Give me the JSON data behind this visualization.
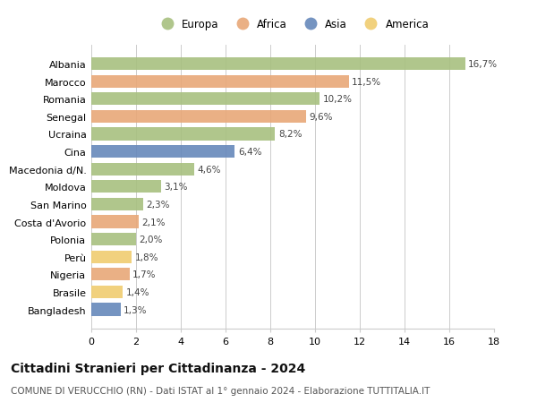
{
  "categories": [
    "Albania",
    "Marocco",
    "Romania",
    "Senegal",
    "Ucraina",
    "Cina",
    "Macedonia d/N.",
    "Moldova",
    "San Marino",
    "Costa d'Avorio",
    "Polonia",
    "Perù",
    "Nigeria",
    "Brasile",
    "Bangladesh"
  ],
  "values": [
    16.7,
    11.5,
    10.2,
    9.6,
    8.2,
    6.4,
    4.6,
    3.1,
    2.3,
    2.1,
    2.0,
    1.8,
    1.7,
    1.4,
    1.3
  ],
  "labels": [
    "16,7%",
    "11,5%",
    "10,2%",
    "9,6%",
    "8,2%",
    "6,4%",
    "4,6%",
    "3,1%",
    "2,3%",
    "2,1%",
    "2,0%",
    "1,8%",
    "1,7%",
    "1,4%",
    "1,3%"
  ],
  "continents": [
    "Europa",
    "Africa",
    "Europa",
    "Africa",
    "Europa",
    "Asia",
    "Europa",
    "Europa",
    "Europa",
    "Africa",
    "Europa",
    "America",
    "Africa",
    "America",
    "Asia"
  ],
  "colors": {
    "Europa": "#a8c080",
    "Africa": "#e8a878",
    "Asia": "#6688bb",
    "America": "#f0cc70"
  },
  "xlim": [
    0,
    18
  ],
  "xticks": [
    0,
    2,
    4,
    6,
    8,
    10,
    12,
    14,
    16,
    18
  ],
  "title": "Cittadini Stranieri per Cittadinanza - 2024",
  "subtitle": "COMUNE DI VERUCCHIO (RN) - Dati ISTAT al 1° gennaio 2024 - Elaborazione TUTTITALIA.IT",
  "bg_color": "#ffffff",
  "grid_color": "#cccccc",
  "bar_height": 0.72,
  "label_fontsize": 7.5,
  "ytick_fontsize": 8,
  "xtick_fontsize": 8,
  "title_fontsize": 10,
  "subtitle_fontsize": 7.5
}
